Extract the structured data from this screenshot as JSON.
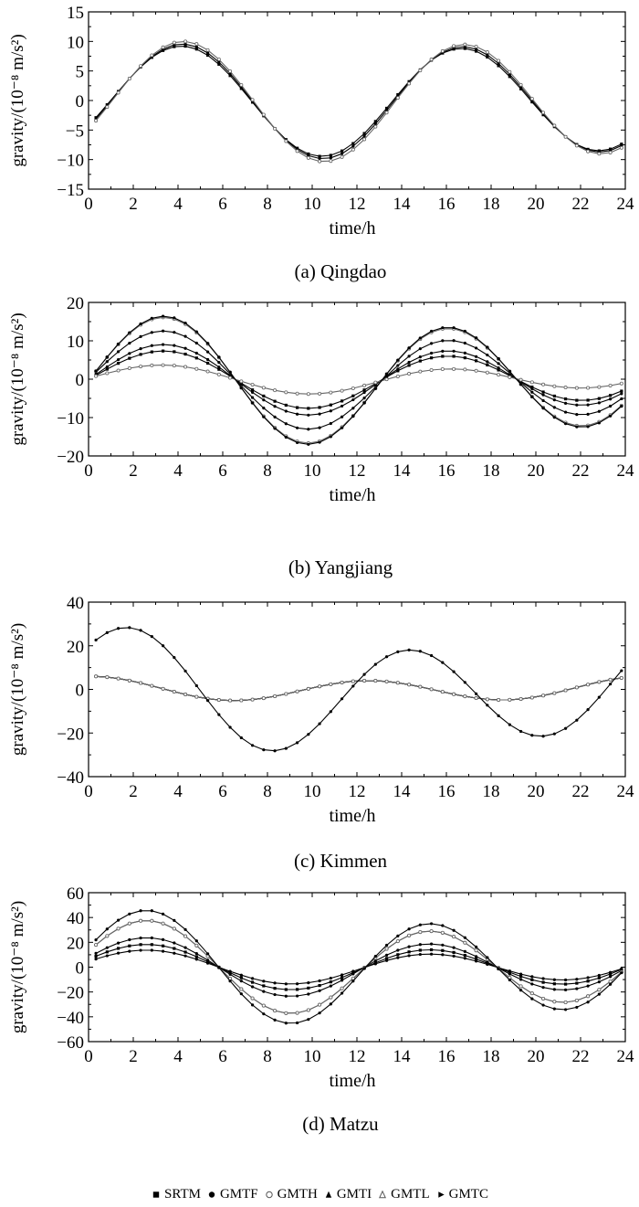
{
  "legend": [
    {
      "name": "SRTM",
      "marker": "square-filled"
    },
    {
      "name": "GMTF",
      "marker": "circle-filled"
    },
    {
      "name": "GMTH",
      "marker": "circle-open"
    },
    {
      "name": "GMTI",
      "marker": "triangle-filled"
    },
    {
      "name": "GMTL",
      "marker": "triangle-open"
    },
    {
      "name": "GMTC",
      "marker": "triangle-right-filled"
    }
  ],
  "chart_data": [
    {
      "type": "line",
      "caption": "(a) Qingdao",
      "xlabel": "time/h",
      "ylabel": "gravity/(10⁻⁸ m/s²)",
      "xlim": [
        0,
        24
      ],
      "ylim": [
        -15,
        15
      ],
      "xticks": [
        0,
        2,
        4,
        6,
        8,
        10,
        12,
        14,
        16,
        18,
        20,
        22,
        24
      ],
      "yticks": [
        -15,
        -10,
        -5,
        0,
        5,
        10,
        15
      ],
      "x_start": 0.33,
      "x_end": 24,
      "x_step": 0.5,
      "series": [
        {
          "name": "SRTM",
          "model": {
            "offset": 0,
            "a1": 9.0,
            "ph1": 4.2,
            "a2": 0.5,
            "ph2": 0
          }
        },
        {
          "name": "GMTF",
          "model": {
            "offset": 0,
            "a1": 9.3,
            "ph1": 4.25,
            "a2": 0.6,
            "ph2": 0
          }
        },
        {
          "name": "GMTH",
          "model": {
            "offset": 0,
            "a1": 9.7,
            "ph1": 4.3,
            "a2": 0.7,
            "ph2": 0
          }
        }
      ]
    },
    {
      "type": "line",
      "caption": "(b) Yangjiang",
      "xlabel": "time/h",
      "ylabel": "gravity/(10⁻⁸ m/s²)",
      "xlim": [
        0,
        24
      ],
      "ylim": [
        -20,
        20
      ],
      "xticks": [
        0,
        2,
        4,
        6,
        8,
        10,
        12,
        14,
        16,
        18,
        20,
        22,
        24
      ],
      "yticks": [
        -20,
        -10,
        0,
        10,
        20
      ],
      "x_start": 0.33,
      "x_end": 24,
      "x_step": 0.5,
      "series": [
        {
          "name": "SRTM",
          "model": {
            "offset": 0,
            "a1": 6.6,
            "ph1": 3.5,
            "a2": 1.2,
            "ph2": 0
          }
        },
        {
          "name": "GMTF",
          "model": {
            "offset": 0,
            "a1": 11.2,
            "ph1": 3.5,
            "a2": 2.2,
            "ph2": 0
          }
        },
        {
          "name": "GMTH",
          "model": {
            "offset": 0,
            "a1": 14.5,
            "ph1": 3.5,
            "a2": 2.6,
            "ph2": 0
          }
        },
        {
          "name": "GMTI",
          "model": {
            "offset": 0,
            "a1": 8.1,
            "ph1": 3.5,
            "a2": 1.5,
            "ph2": 0
          }
        },
        {
          "name": "GMTL",
          "model": {
            "offset": 0,
            "a1": 3.1,
            "ph1": 3.5,
            "a2": 0.9,
            "ph2": 0
          }
        },
        {
          "name": "GMTC",
          "model": {
            "offset": 0,
            "a1": 14.8,
            "ph1": 3.5,
            "a2": 2.6,
            "ph2": 0
          }
        }
      ]
    },
    {
      "type": "line",
      "caption": "(c) Kimmen",
      "xlabel": "time/h",
      "ylabel": "gravity/(10⁻⁸ m/s²)",
      "xlim": [
        0,
        24
      ],
      "ylim": [
        -40,
        40
      ],
      "xticks": [
        0,
        2,
        4,
        6,
        8,
        10,
        12,
        14,
        16,
        18,
        20,
        22,
        24
      ],
      "yticks": [
        -40,
        -20,
        0,
        20,
        40
      ],
      "x_start": 0.33,
      "x_end": 24,
      "x_step": 0.5,
      "series": [
        {
          "name": "SRTM",
          "model": {
            "offset": 0,
            "a1": 5.0,
            "ph1": 12.5,
            "a2": 1.0,
            "ph2": 0
          }
        },
        {
          "name": "GMTF",
          "model": {
            "offset": 0,
            "a1": 5.0,
            "ph1": 12.5,
            "a2": 1.0,
            "ph2": 0
          }
        },
        {
          "name": "GMTH",
          "model": {
            "offset": 0,
            "a1": 5.0,
            "ph1": 12.5,
            "a2": 1.0,
            "ph2": 0
          }
        },
        {
          "name": "GMTI",
          "model": {
            "offset": 0,
            "a1": 5.0,
            "ph1": 12.5,
            "a2": 1.0,
            "ph2": 0
          }
        },
        {
          "name": "GMTL",
          "model": {
            "offset": 0,
            "a1": 5.0,
            "ph1": 12.5,
            "a2": 1.0,
            "ph2": 0
          }
        },
        {
          "name": "GMTC",
          "model": {
            "offset": -1,
            "a1": 24,
            "ph1": 1.8,
            "a2": 6,
            "ph2": 0
          }
        }
      ]
    },
    {
      "type": "line",
      "caption": "(d) Matzu",
      "xlabel": "time/h",
      "ylabel": "gravity/(10⁻⁸ m/s²)",
      "xlim": [
        0,
        24
      ],
      "ylim": [
        -60,
        60
      ],
      "xticks": [
        0,
        2,
        4,
        6,
        8,
        10,
        12,
        14,
        16,
        18,
        20,
        22,
        24
      ],
      "yticks": [
        -60,
        -40,
        -20,
        0,
        20,
        40,
        60
      ],
      "x_start": 0.33,
      "x_end": 24,
      "x_step": 0.5,
      "series": [
        {
          "name": "SRTM",
          "model": {
            "offset": 0,
            "a1": 16,
            "ph1": 2.7,
            "a2": 3.0,
            "ph2": 0
          }
        },
        {
          "name": "GMTF",
          "model": {
            "offset": 0,
            "a1": 12,
            "ph1": 2.7,
            "a2": 2.2,
            "ph2": 0
          }
        },
        {
          "name": "GMTH",
          "model": {
            "offset": 0,
            "a1": 33,
            "ph1": 2.7,
            "a2": 6.0,
            "ph2": 0
          }
        },
        {
          "name": "GMTI",
          "model": {
            "offset": 0,
            "a1": 21,
            "ph1": 2.7,
            "a2": 3.5,
            "ph2": 0
          }
        },
        {
          "name": "GMTL",
          "model": {
            "offset": 0,
            "a1": 33,
            "ph1": 2.7,
            "a2": 6.0,
            "ph2": 0
          }
        },
        {
          "name": "GMTC",
          "model": {
            "offset": 0,
            "a1": 40,
            "ph1": 2.7,
            "a2": 7.5,
            "ph2": 0
          }
        }
      ]
    }
  ]
}
